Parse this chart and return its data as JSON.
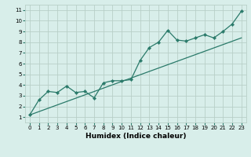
{
  "title": "",
  "xlabel": "Humidex (Indice chaleur)",
  "xlim": [
    -0.5,
    23.5
  ],
  "ylim": [
    0.5,
    11.5
  ],
  "xticks": [
    0,
    1,
    2,
    3,
    4,
    5,
    6,
    7,
    8,
    9,
    10,
    11,
    12,
    13,
    14,
    15,
    16,
    17,
    18,
    19,
    20,
    21,
    22,
    23
  ],
  "yticks": [
    1,
    2,
    3,
    4,
    5,
    6,
    7,
    8,
    9,
    10,
    11
  ],
  "line_color": "#2a7a6a",
  "bg_color": "#d8eeea",
  "grid_color": "#b8cfc8",
  "zigzag_x": [
    0,
    1,
    2,
    3,
    4,
    5,
    6,
    7,
    8,
    9,
    10,
    11,
    12,
    13,
    14,
    15,
    16,
    17,
    18,
    19,
    20,
    21,
    22,
    23
  ],
  "zigzag_y": [
    1.2,
    2.6,
    3.4,
    3.3,
    3.9,
    3.3,
    3.4,
    2.8,
    4.2,
    4.4,
    4.4,
    4.5,
    6.3,
    7.5,
    8.0,
    9.1,
    8.2,
    8.1,
    8.4,
    8.7,
    8.4,
    9.0,
    9.7,
    10.9
  ],
  "trend_x": [
    0,
    23
  ],
  "trend_y": [
    1.2,
    8.4
  ],
  "tick_fontsize": 5.0,
  "xlabel_fontsize": 6.5,
  "marker_size": 2.2,
  "line_width": 0.9
}
